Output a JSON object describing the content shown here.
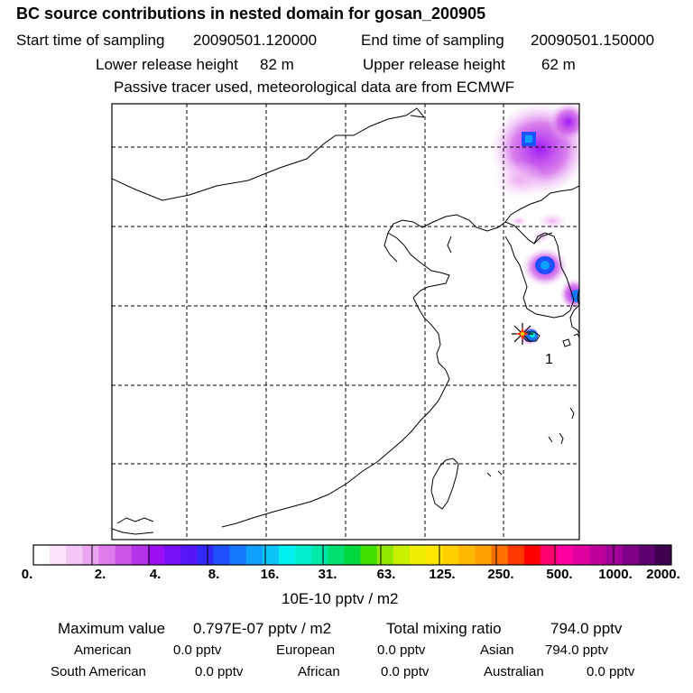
{
  "chart_data": {
    "type": "heatmap",
    "title": "BC  source contributions in nested domain for gosan_200905",
    "header": {
      "start_label": "Start time of sampling",
      "start_value": "20090501.120000",
      "end_label": "End time of sampling",
      "end_value": "20090501.150000",
      "lower_label": "Lower release height",
      "lower_value": "82 m",
      "upper_label": "Upper release height",
      "upper_value": "62 m",
      "note": "Passive tracer used, meteorological data are from ECMWF"
    },
    "map": {
      "grid": true,
      "grid_lines_x": 5,
      "grid_lines_y": 5,
      "receptor_marker": "star",
      "receptor_label": "1"
    },
    "colorbar": {
      "tick_labels": [
        "0.",
        "2.",
        "4.",
        "8.",
        "16.",
        "31.",
        "63.",
        "125.",
        "250.",
        "500.",
        "1000.",
        "2000."
      ],
      "colors": [
        "#ffffff",
        "#fbe4fb",
        "#f4c6f6",
        "#eca6f1",
        "#dd7cea",
        "#cc55e6",
        "#b533e8",
        "#9c0ff2",
        "#7a10f6",
        "#5515f8",
        "#3328fa",
        "#1f50fb",
        "#1478fc",
        "#0fa0fb",
        "#0cc4f8",
        "#00f0f0",
        "#00f0d0",
        "#00e8a8",
        "#00e070",
        "#00d840",
        "#40e000",
        "#90e800",
        "#c8f000",
        "#eef000",
        "#ffe800",
        "#ffd000",
        "#ffb800",
        "#ffa000",
        "#ff7000",
        "#ff3800",
        "#ff0000",
        "#ff0070",
        "#ff00a0",
        "#e000a0",
        "#c0009c",
        "#a00098",
        "#800088",
        "#600070",
        "#400050"
      ],
      "unit": "10E-10 pptv / m2"
    },
    "plumes": [
      {
        "region": "northeast",
        "intensity": 4
      },
      {
        "region": "korea",
        "intensity": 16
      },
      {
        "region": "japan-west",
        "intensity": 8
      },
      {
        "region": "jeju",
        "intensity": 16
      }
    ],
    "footer": {
      "max_label": "Maximum value",
      "max_value": "0.797E-07 pptv / m2",
      "total_label": "Total mixing ratio",
      "total_value": "794.0 pptv",
      "rows": [
        [
          {
            "label": "American",
            "value": "0.0 pptv"
          },
          {
            "label": "European",
            "value": "0.0 pptv"
          },
          {
            "label": "Asian",
            "value": "794.0 pptv"
          }
        ],
        [
          {
            "label": "South American",
            "value": "0.0 pptv"
          },
          {
            "label": "African",
            "value": "0.0 pptv"
          },
          {
            "label": "Australian",
            "value": "0.0 pptv"
          }
        ]
      ]
    }
  }
}
